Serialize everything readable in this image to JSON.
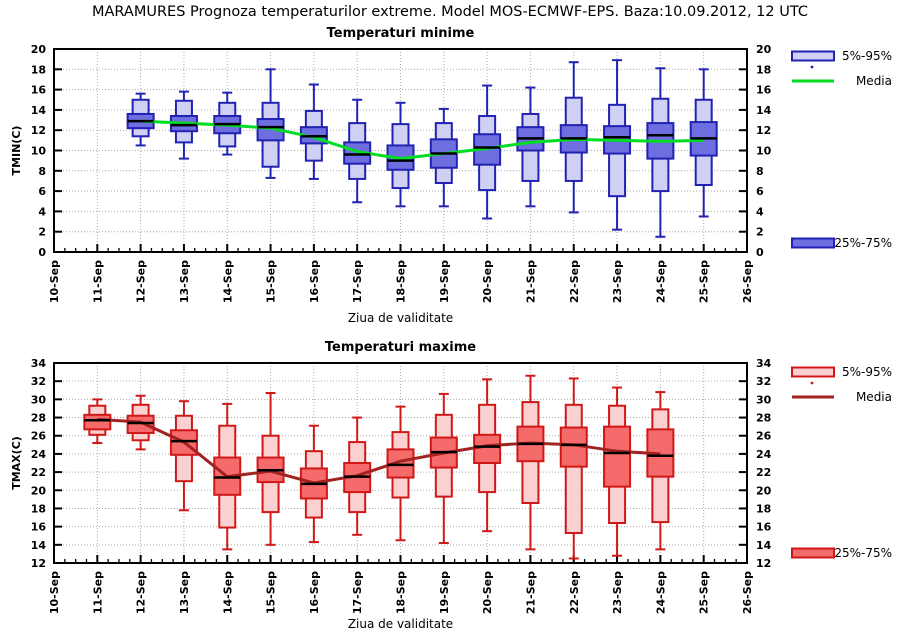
{
  "title": "MARAMURES  Prognoza temperaturilor extreme.  Model MOS-ECMWF-EPS. Baza:10.09.2012, 12 UTC",
  "chart_data": [
    {
      "type": "boxplot",
      "title": "Temperaturi minime",
      "ylabel": "TMIN(C)",
      "xlabel": "Ziua de validitate",
      "ylim": [
        0,
        20
      ],
      "ystep": 2,
      "x_range_days": [
        10,
        26
      ],
      "grid": true,
      "x_tick_labels": [
        "10-Sep",
        "11-Sep",
        "12-Sep",
        "13-Sep",
        "14-Sep",
        "15-Sep",
        "16-Sep",
        "17-Sep",
        "18-Sep",
        "19-Sep",
        "20-Sep",
        "21-Sep",
        "22-Sep",
        "23-Sep",
        "24-Sep",
        "25-Sep",
        "26-Sep"
      ],
      "legend": {
        "outer_box": "5%-95%",
        "media": "Media",
        "inner_box": "25%-75%",
        "position": "right-outside"
      },
      "colors": {
        "border": "#2222b2",
        "box_fill": "#6e6ee0",
        "outer_fill": "#d0d0f4",
        "media": "#00dd22",
        "median": "#000000",
        "title": "#0000cc",
        "grid": "#aaaaaa"
      },
      "series": [
        {
          "day": "12-Sep",
          "whisker_low": 10.5,
          "p5": 11.4,
          "p25": 12.2,
          "median": 12.9,
          "p75": 13.6,
          "p95": 15.0,
          "whisker_high": 15.6,
          "media": 12.9
        },
        {
          "day": "13-Sep",
          "whisker_low": 9.2,
          "p5": 10.8,
          "p25": 11.9,
          "median": 12.5,
          "p75": 13.4,
          "p95": 14.9,
          "whisker_high": 15.8,
          "media": 12.7
        },
        {
          "day": "14-Sep",
          "whisker_low": 9.6,
          "p5": 10.4,
          "p25": 11.7,
          "median": 12.6,
          "p75": 13.4,
          "p95": 14.7,
          "whisker_high": 15.7,
          "media": 12.5
        },
        {
          "day": "15-Sep",
          "whisker_low": 7.3,
          "p5": 8.4,
          "p25": 11.0,
          "median": 12.3,
          "p75": 13.1,
          "p95": 14.7,
          "whisker_high": 18.0,
          "media": 12.2
        },
        {
          "day": "16-Sep",
          "whisker_low": 7.2,
          "p5": 9.0,
          "p25": 10.7,
          "median": 11.4,
          "p75": 12.3,
          "p95": 13.9,
          "whisker_high": 16.5,
          "media": 11.3
        },
        {
          "day": "17-Sep",
          "whisker_low": 4.9,
          "p5": 7.2,
          "p25": 8.7,
          "median": 9.6,
          "p75": 10.8,
          "p95": 12.7,
          "whisker_high": 15.0,
          "media": 9.9
        },
        {
          "day": "18-Sep",
          "whisker_low": 4.5,
          "p5": 6.3,
          "p25": 8.1,
          "median": 9.0,
          "p75": 10.5,
          "p95": 12.6,
          "whisker_high": 14.7,
          "media": 9.2
        },
        {
          "day": "19-Sep",
          "whisker_low": 4.5,
          "p5": 6.8,
          "p25": 8.3,
          "median": 9.7,
          "p75": 11.1,
          "p95": 12.7,
          "whisker_high": 14.1,
          "media": 9.7
        },
        {
          "day": "20-Sep",
          "whisker_low": 3.3,
          "p5": 6.1,
          "p25": 8.6,
          "median": 10.3,
          "p75": 11.6,
          "p95": 13.4,
          "whisker_high": 16.4,
          "media": 10.2
        },
        {
          "day": "21-Sep",
          "whisker_low": 4.5,
          "p5": 7.0,
          "p25": 10.0,
          "median": 11.2,
          "p75": 12.3,
          "p95": 13.6,
          "whisker_high": 16.2,
          "media": 10.8
        },
        {
          "day": "22-Sep",
          "whisker_low": 3.9,
          "p5": 7.0,
          "p25": 9.8,
          "median": 11.2,
          "p75": 12.5,
          "p95": 15.2,
          "whisker_high": 18.7,
          "media": 11.1
        },
        {
          "day": "23-Sep",
          "whisker_low": 2.2,
          "p5": 5.5,
          "p25": 9.7,
          "median": 11.3,
          "p75": 12.4,
          "p95": 14.5,
          "whisker_high": 18.9,
          "media": 11.0
        },
        {
          "day": "24-Sep",
          "whisker_low": 1.5,
          "p5": 6.0,
          "p25": 9.2,
          "median": 11.5,
          "p75": 12.7,
          "p95": 15.1,
          "whisker_high": 18.1,
          "media": 10.9
        },
        {
          "day": "25-Sep",
          "whisker_low": 3.5,
          "p5": 6.6,
          "p25": 9.5,
          "median": 11.2,
          "p75": 12.8,
          "p95": 15.0,
          "whisker_high": 18.0,
          "media": 11.0
        }
      ]
    },
    {
      "type": "boxplot",
      "title": "Temperaturi maxime",
      "ylabel": "TMAX(C)",
      "xlabel": "Ziua de validitate",
      "ylim": [
        12,
        34
      ],
      "ystep": 2,
      "x_range_days": [
        10,
        26
      ],
      "grid": true,
      "x_tick_labels": [
        "10-Sep",
        "11-Sep",
        "12-Sep",
        "13-Sep",
        "14-Sep",
        "15-Sep",
        "16-Sep",
        "17-Sep",
        "18-Sep",
        "19-Sep",
        "20-Sep",
        "21-Sep",
        "22-Sep",
        "23-Sep",
        "24-Sep",
        "25-Sep",
        "26-Sep"
      ],
      "legend": {
        "outer_box": "5%-95%",
        "media": "Media",
        "inner_box": "25%-75%",
        "position": "right-outside"
      },
      "colors": {
        "border": "#d01818",
        "box_fill": "#f56a6a",
        "outer_fill": "#fbd0d0",
        "media": "#a22222",
        "median": "#000000",
        "title": "#dd0000",
        "grid": "#aaaaaa"
      },
      "series": [
        {
          "day": "11-Sep",
          "whisker_low": 25.2,
          "p5": 26.1,
          "p25": 26.7,
          "median": 27.7,
          "p75": 28.3,
          "p95": 29.3,
          "whisker_high": 30.0,
          "media": 27.8
        },
        {
          "day": "12-Sep",
          "whisker_low": 24.5,
          "p5": 25.5,
          "p25": 26.3,
          "median": 27.4,
          "p75": 28.2,
          "p95": 29.4,
          "whisker_high": 30.4,
          "media": 27.5
        },
        {
          "day": "13-Sep",
          "whisker_low": 17.8,
          "p5": 21.0,
          "p25": 23.9,
          "median": 25.4,
          "p75": 26.6,
          "p95": 28.2,
          "whisker_high": 29.8,
          "media": 25.3
        },
        {
          "day": "14-Sep",
          "whisker_low": 13.5,
          "p5": 15.9,
          "p25": 19.5,
          "median": 21.4,
          "p75": 23.6,
          "p95": 27.1,
          "whisker_high": 29.5,
          "media": 21.5
        },
        {
          "day": "15-Sep",
          "whisker_low": 14.0,
          "p5": 17.6,
          "p25": 20.9,
          "median": 22.2,
          "p75": 23.6,
          "p95": 26.0,
          "whisker_high": 30.7,
          "media": 22.1
        },
        {
          "day": "16-Sep",
          "whisker_low": 14.3,
          "p5": 17.0,
          "p25": 19.1,
          "median": 20.7,
          "p75": 22.4,
          "p95": 24.3,
          "whisker_high": 27.1,
          "media": 20.8
        },
        {
          "day": "17-Sep",
          "whisker_low": 15.1,
          "p5": 17.6,
          "p25": 19.8,
          "median": 21.5,
          "p75": 23.0,
          "p95": 25.3,
          "whisker_high": 28.0,
          "media": 21.6
        },
        {
          "day": "18-Sep",
          "whisker_low": 14.5,
          "p5": 19.2,
          "p25": 21.4,
          "median": 22.8,
          "p75": 24.5,
          "p95": 26.4,
          "whisker_high": 29.2,
          "media": 23.2
        },
        {
          "day": "19-Sep",
          "whisker_low": 14.2,
          "p5": 19.3,
          "p25": 22.5,
          "median": 24.2,
          "p75": 25.8,
          "p95": 28.3,
          "whisker_high": 30.6,
          "media": 24.1
        },
        {
          "day": "20-Sep",
          "whisker_low": 15.5,
          "p5": 19.8,
          "p25": 23.0,
          "median": 24.8,
          "p75": 26.1,
          "p95": 29.4,
          "whisker_high": 32.2,
          "media": 24.9
        },
        {
          "day": "21-Sep",
          "whisker_low": 13.5,
          "p5": 18.6,
          "p25": 23.2,
          "median": 25.1,
          "p75": 27.0,
          "p95": 29.7,
          "whisker_high": 32.6,
          "media": 25.2
        },
        {
          "day": "22-Sep",
          "whisker_low": 12.5,
          "p5": 15.3,
          "p25": 22.6,
          "median": 25.0,
          "p75": 26.9,
          "p95": 29.4,
          "whisker_high": 32.3,
          "media": 25.0
        },
        {
          "day": "23-Sep",
          "whisker_low": 12.8,
          "p5": 16.4,
          "p25": 20.4,
          "median": 24.1,
          "p75": 27.0,
          "p95": 29.3,
          "whisker_high": 31.3,
          "media": 24.3
        },
        {
          "day": "24-Sep",
          "whisker_low": 13.5,
          "p5": 16.5,
          "p25": 21.5,
          "median": 23.8,
          "p75": 26.7,
          "p95": 28.9,
          "whisker_high": 30.8,
          "media": 24.0
        }
      ]
    }
  ]
}
